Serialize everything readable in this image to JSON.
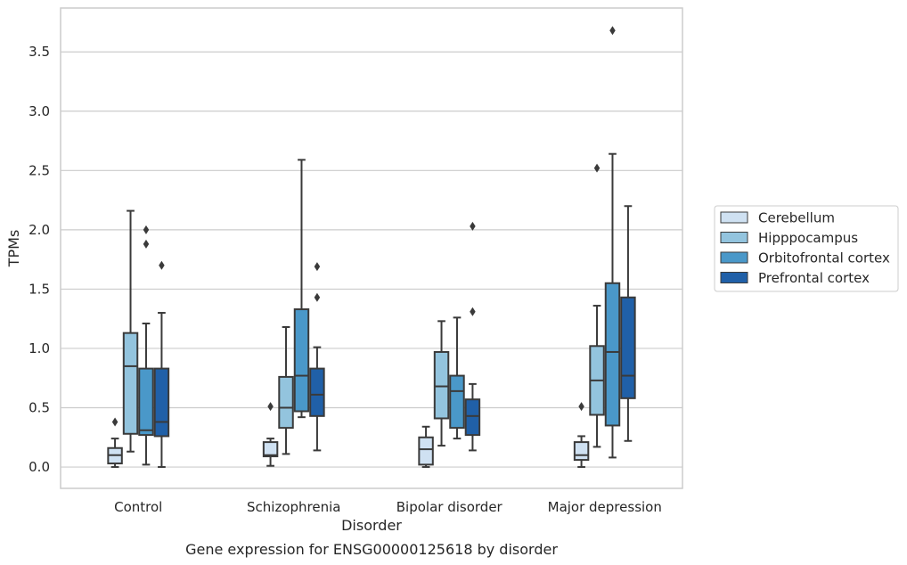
{
  "chart_data": {
    "type": "box",
    "xlabel": "Disorder",
    "ylabel": "TPMs",
    "caption": "Gene expression for ENSG00000125618 by disorder",
    "ylim": [
      -0.18,
      3.87
    ],
    "yticks": [
      "0.0",
      "0.5",
      "1.0",
      "1.5",
      "2.0",
      "2.5",
      "3.0",
      "3.5"
    ],
    "grid": true,
    "legend_position": "right",
    "categories": [
      "Control",
      "Schizophrenia",
      "Bipolar disorder",
      "Major depression"
    ],
    "series": [
      {
        "name": "Cerebellum",
        "color": "#cfe1f2",
        "boxes": [
          {
            "whisker_low": 0.0,
            "q1": 0.03,
            "median": 0.1,
            "q3": 0.16,
            "whisker_high": 0.24,
            "outliers": [
              0.38
            ]
          },
          {
            "whisker_low": 0.01,
            "q1": 0.09,
            "median": 0.1,
            "q3": 0.21,
            "whisker_high": 0.24,
            "outliers": [
              0.51
            ]
          },
          {
            "whisker_low": 0.0,
            "q1": 0.02,
            "median": 0.15,
            "q3": 0.25,
            "whisker_high": 0.34,
            "outliers": []
          },
          {
            "whisker_low": 0.0,
            "q1": 0.06,
            "median": 0.1,
            "q3": 0.21,
            "whisker_high": 0.26,
            "outliers": [
              0.51
            ]
          }
        ]
      },
      {
        "name": "Hipppocampus",
        "color": "#93c4de",
        "boxes": [
          {
            "whisker_low": 0.13,
            "q1": 0.28,
            "median": 0.85,
            "q3": 1.13,
            "whisker_high": 2.16,
            "outliers": []
          },
          {
            "whisker_low": 0.11,
            "q1": 0.33,
            "median": 0.5,
            "q3": 0.76,
            "whisker_high": 1.18,
            "outliers": []
          },
          {
            "whisker_low": 0.18,
            "q1": 0.41,
            "median": 0.68,
            "q3": 0.97,
            "whisker_high": 1.23,
            "outliers": []
          },
          {
            "whisker_low": 0.17,
            "q1": 0.44,
            "median": 0.73,
            "q3": 1.02,
            "whisker_high": 1.36,
            "outliers": [
              2.52
            ]
          }
        ]
      },
      {
        "name": "Orbitofrontal cortex",
        "color": "#4a98c9",
        "boxes": [
          {
            "whisker_low": 0.02,
            "q1": 0.27,
            "median": 0.31,
            "q3": 0.83,
            "whisker_high": 1.21,
            "outliers": [
              2.0,
              1.88
            ]
          },
          {
            "whisker_low": 0.42,
            "q1": 0.47,
            "median": 0.77,
            "q3": 1.33,
            "whisker_high": 2.59,
            "outliers": []
          },
          {
            "whisker_low": 0.24,
            "q1": 0.33,
            "median": 0.64,
            "q3": 0.77,
            "whisker_high": 1.26,
            "outliers": []
          },
          {
            "whisker_low": 0.08,
            "q1": 0.35,
            "median": 0.97,
            "q3": 1.55,
            "whisker_high": 2.64,
            "outliers": [
              3.68
            ]
          }
        ]
      },
      {
        "name": "Prefrontal cortex",
        "color": "#2060a8",
        "boxes": [
          {
            "whisker_low": 0.0,
            "q1": 0.26,
            "median": 0.38,
            "q3": 0.83,
            "whisker_high": 1.3,
            "outliers": [
              1.7
            ]
          },
          {
            "whisker_low": 0.14,
            "q1": 0.43,
            "median": 0.61,
            "q3": 0.83,
            "whisker_high": 1.01,
            "outliers": [
              1.69,
              1.43
            ]
          },
          {
            "whisker_low": 0.14,
            "q1": 0.27,
            "median": 0.43,
            "q3": 0.57,
            "whisker_high": 0.7,
            "outliers": [
              2.03,
              1.31
            ]
          },
          {
            "whisker_low": 0.22,
            "q1": 0.58,
            "median": 0.77,
            "q3": 1.43,
            "whisker_high": 2.2,
            "outliers": []
          }
        ]
      }
    ]
  }
}
